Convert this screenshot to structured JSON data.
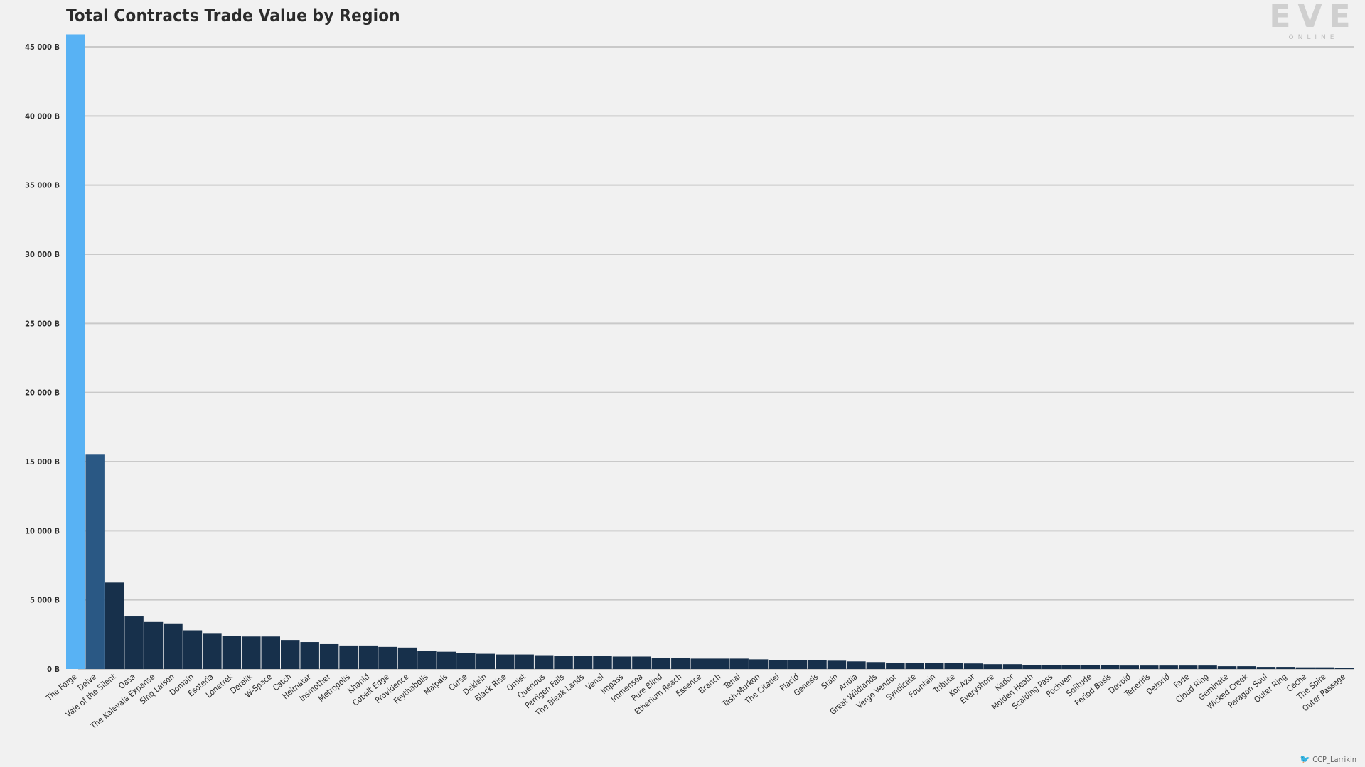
{
  "chart_data": {
    "type": "bar",
    "title": "Total Contracts Trade Value by Region",
    "xlabel": "",
    "ylabel": "",
    "ylim": [
      0,
      46000
    ],
    "yticks": [
      0,
      5000,
      10000,
      15000,
      20000,
      25000,
      30000,
      35000,
      40000,
      45000
    ],
    "ytick_labels": [
      "0 B",
      "5 000 B",
      "10 000 B",
      "15 000 B",
      "20 000 B",
      "25 000 B",
      "30 000 B",
      "35 000 B",
      "40 000 B",
      "45 000 B"
    ],
    "grid": true,
    "colors": {
      "highlight": "#58b2f4",
      "second": "#2a5884",
      "default": "#17304b",
      "grid": "#c9c9c9"
    },
    "categories": [
      "The Forge",
      "Delve",
      "Vale of the Silent",
      "Oasa",
      "The Kalevala Expanse",
      "Sinq Laison",
      "Domain",
      "Esoteria",
      "Lonetrek",
      "Derelik",
      "W-Space",
      "Catch",
      "Heimatar",
      "Insmother",
      "Metropolis",
      "Khanid",
      "Cobalt Edge",
      "Providence",
      "Feythabolis",
      "Malpais",
      "Curse",
      "Deklein",
      "Black Rise",
      "Omist",
      "Querious",
      "Perrigen Falls",
      "The Bleak Lands",
      "Venal",
      "Impass",
      "Immensea",
      "Pure Blind",
      "Etherium Reach",
      "Essence",
      "Branch",
      "Tenal",
      "Tash-Murkon",
      "The Citadel",
      "Placid",
      "Genesis",
      "Stain",
      "Aridia",
      "Great Wildlands",
      "Verge Vendor",
      "Syndicate",
      "Fountain",
      "Tribute",
      "Kor-Azor",
      "Everyshore",
      "Kador",
      "Molden Heath",
      "Scalding Pass",
      "Pochven",
      "Solitude",
      "Period Basis",
      "Devoid",
      "Tenerifis",
      "Detorid",
      "Fade",
      "Cloud Ring",
      "Geminate",
      "Wicked Creek",
      "Paragon Soul",
      "Outer Ring",
      "Cache",
      "The Spire",
      "Outer Passage"
    ],
    "values": [
      45900,
      15550,
      6250,
      3800,
      3400,
      3300,
      2800,
      2550,
      2400,
      2350,
      2350,
      2100,
      1950,
      1800,
      1700,
      1700,
      1600,
      1550,
      1300,
      1250,
      1150,
      1100,
      1050,
      1050,
      1000,
      950,
      950,
      950,
      900,
      900,
      800,
      800,
      750,
      750,
      750,
      700,
      650,
      650,
      650,
      600,
      550,
      500,
      450,
      450,
      450,
      450,
      400,
      350,
      350,
      300,
      300,
      300,
      300,
      300,
      250,
      250,
      250,
      250,
      250,
      200,
      200,
      150,
      150,
      120,
      120,
      80
    ]
  },
  "logo": {
    "text": "EVE",
    "subtext": "ONLINE"
  },
  "credit": {
    "text": "CCP_Larrikin",
    "icon": "twitter-bird-icon"
  }
}
